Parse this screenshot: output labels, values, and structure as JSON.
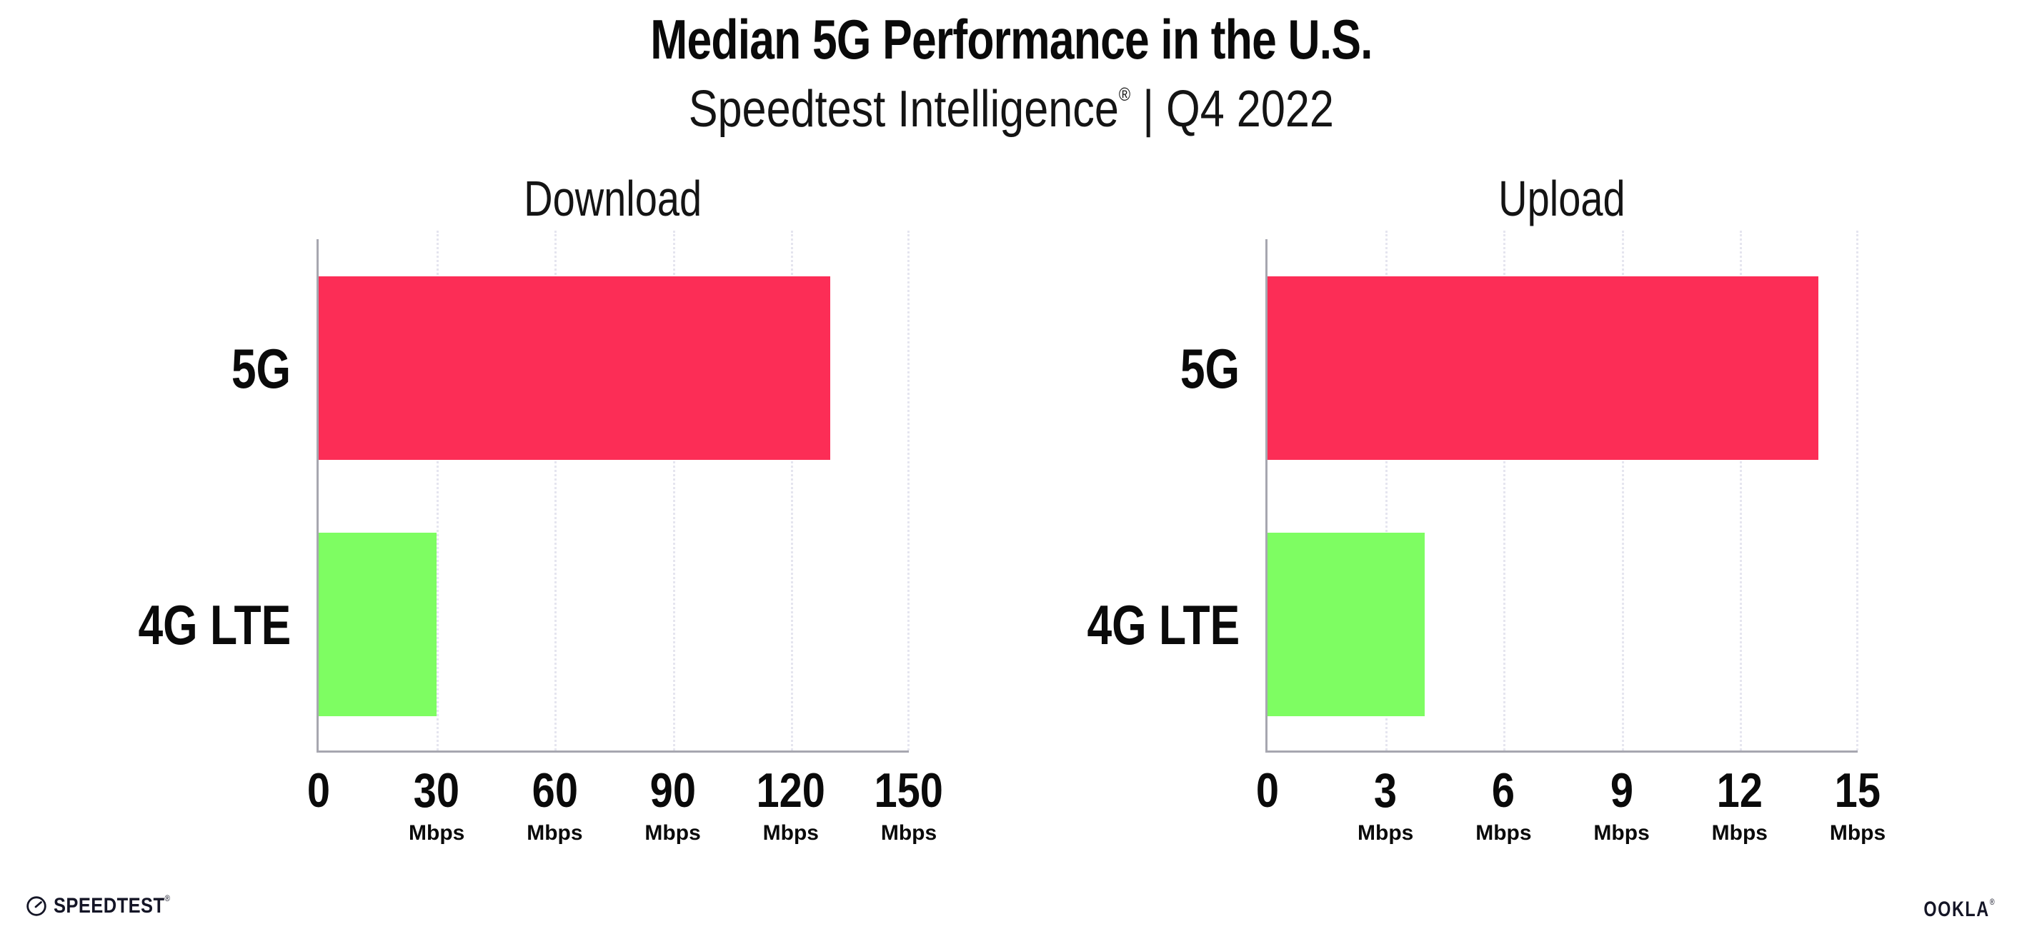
{
  "header": {
    "title": "Median 5G Performance in the U.S.",
    "subtitle_brand": "Speedtest Intelligence",
    "subtitle_reg": "®",
    "subtitle_rest": " | Q4 2022"
  },
  "colors": {
    "bar_5g": "#FC2D56",
    "bar_4g_lte": "#7EFD62",
    "axis": "#A7A7B0",
    "gridline": "#E5E5EF",
    "text": "#0A0A0A"
  },
  "chart_data": [
    {
      "type": "bar",
      "orientation": "horizontal",
      "title": "Download",
      "categories": [
        "5G",
        "4G LTE"
      ],
      "values": [
        130,
        30
      ],
      "unit": "Mbps",
      "xlim": [
        0,
        150
      ],
      "xticks": [
        0,
        30,
        60,
        90,
        120,
        150
      ],
      "bar_colors": [
        "#FC2D56",
        "#7EFD62"
      ],
      "grid": "dotted-vertical-at-ticks",
      "legend": "none"
    },
    {
      "type": "bar",
      "orientation": "horizontal",
      "title": "Upload",
      "categories": [
        "5G",
        "4G LTE"
      ],
      "values": [
        14,
        4
      ],
      "unit": "Mbps",
      "xlim": [
        0,
        15
      ],
      "xticks": [
        0,
        3,
        6,
        9,
        12,
        15
      ],
      "bar_colors": [
        "#FC2D56",
        "#7EFD62"
      ],
      "grid": "dotted-vertical-at-ticks",
      "legend": "none"
    }
  ],
  "footer": {
    "speedtest_wordmark": "SPEEDTEST",
    "speedtest_reg": "®",
    "ookla_wordmark": "OOKLA",
    "ookla_reg": "®"
  }
}
